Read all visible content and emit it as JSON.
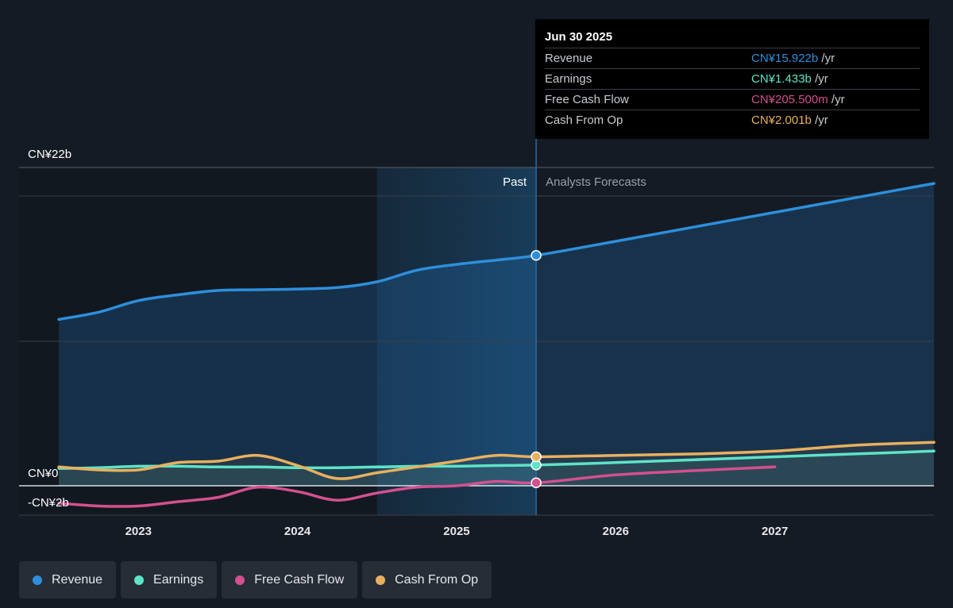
{
  "chart_data": {
    "type": "line",
    "y_ticks": [
      "CN¥22b",
      "CN¥0",
      "-CN¥2b"
    ],
    "x_ticks": [
      "2023",
      "2024",
      "2025",
      "2026",
      "2027"
    ],
    "region_labels": {
      "past": "Past",
      "forecast": "Analysts Forecasts"
    },
    "ylim": [
      -2,
      22
    ],
    "xlim": [
      2022.25,
      2028.0
    ],
    "divider_x": 2025.5,
    "past_band_start": 2024.5,
    "series": [
      {
        "name": "Revenue",
        "color": "#2d8fdc",
        "points": [
          [
            2022.5,
            11.5
          ],
          [
            2022.75,
            12.0
          ],
          [
            2023.0,
            12.8
          ],
          [
            2023.25,
            13.2
          ],
          [
            2023.5,
            13.5
          ],
          [
            2023.75,
            13.55
          ],
          [
            2024.0,
            13.6
          ],
          [
            2024.25,
            13.7
          ],
          [
            2024.5,
            14.1
          ],
          [
            2024.75,
            14.9
          ],
          [
            2025.0,
            15.3
          ],
          [
            2025.25,
            15.6
          ],
          [
            2025.5,
            15.922
          ],
          [
            2026.0,
            16.9
          ],
          [
            2026.5,
            17.9
          ],
          [
            2027.0,
            18.9
          ],
          [
            2027.5,
            19.9
          ],
          [
            2028.0,
            20.9
          ]
        ]
      },
      {
        "name": "Earnings",
        "color": "#5ee3c7",
        "points": [
          [
            2022.5,
            1.2
          ],
          [
            2022.75,
            1.25
          ],
          [
            2023.0,
            1.35
          ],
          [
            2023.25,
            1.35
          ],
          [
            2023.5,
            1.3
          ],
          [
            2023.75,
            1.3
          ],
          [
            2024.0,
            1.25
          ],
          [
            2024.25,
            1.25
          ],
          [
            2024.5,
            1.3
          ],
          [
            2024.75,
            1.35
          ],
          [
            2025.0,
            1.35
          ],
          [
            2025.25,
            1.4
          ],
          [
            2025.5,
            1.433
          ],
          [
            2026.0,
            1.6
          ],
          [
            2026.5,
            1.8
          ],
          [
            2027.0,
            2.0
          ],
          [
            2027.5,
            2.2
          ],
          [
            2028.0,
            2.4
          ]
        ]
      },
      {
        "name": "Free Cash Flow",
        "color": "#d4508f",
        "points": [
          [
            2022.5,
            -1.2
          ],
          [
            2022.75,
            -1.4
          ],
          [
            2023.0,
            -1.4
          ],
          [
            2023.25,
            -1.1
          ],
          [
            2023.5,
            -0.8
          ],
          [
            2023.75,
            -0.1
          ],
          [
            2024.0,
            -0.4
          ],
          [
            2024.25,
            -1.0
          ],
          [
            2024.5,
            -0.5
          ],
          [
            2024.75,
            -0.1
          ],
          [
            2025.0,
            0.0
          ],
          [
            2025.25,
            0.3
          ],
          [
            2025.5,
            0.2055
          ],
          [
            2026.0,
            0.75
          ],
          [
            2026.5,
            1.05
          ],
          [
            2027.0,
            1.3
          ]
        ]
      },
      {
        "name": "Cash From Op",
        "color": "#e8b05e",
        "points": [
          [
            2022.5,
            1.3
          ],
          [
            2022.75,
            1.1
          ],
          [
            2023.0,
            1.1
          ],
          [
            2023.25,
            1.6
          ],
          [
            2023.5,
            1.7
          ],
          [
            2023.75,
            2.1
          ],
          [
            2024.0,
            1.4
          ],
          [
            2024.25,
            0.5
          ],
          [
            2024.5,
            0.9
          ],
          [
            2024.75,
            1.3
          ],
          [
            2025.0,
            1.7
          ],
          [
            2025.25,
            2.1
          ],
          [
            2025.5,
            2.001
          ],
          [
            2026.0,
            2.1
          ],
          [
            2026.5,
            2.2
          ],
          [
            2027.0,
            2.4
          ],
          [
            2027.5,
            2.8
          ],
          [
            2028.0,
            3.0
          ]
        ]
      }
    ]
  },
  "tooltip": {
    "date": "Jun 30 2025",
    "rows": [
      {
        "label": "Revenue",
        "value": "CN¥15.922b",
        "unit": "/yr",
        "color": "#2d8fdc"
      },
      {
        "label": "Earnings",
        "value": "CN¥1.433b",
        "unit": "/yr",
        "color": "#5ee3c7"
      },
      {
        "label": "Free Cash Flow",
        "value": "CN¥205.500m",
        "unit": "/yr",
        "color": "#d4508f"
      },
      {
        "label": "Cash From Op",
        "value": "CN¥2.001b",
        "unit": "/yr",
        "color": "#e8b05e"
      }
    ]
  },
  "legend": [
    {
      "label": "Revenue",
      "color": "#2d8fdc"
    },
    {
      "label": "Earnings",
      "color": "#5ee3c7"
    },
    {
      "label": "Free Cash Flow",
      "color": "#d4508f"
    },
    {
      "label": "Cash From Op",
      "color": "#e8b05e"
    }
  ]
}
